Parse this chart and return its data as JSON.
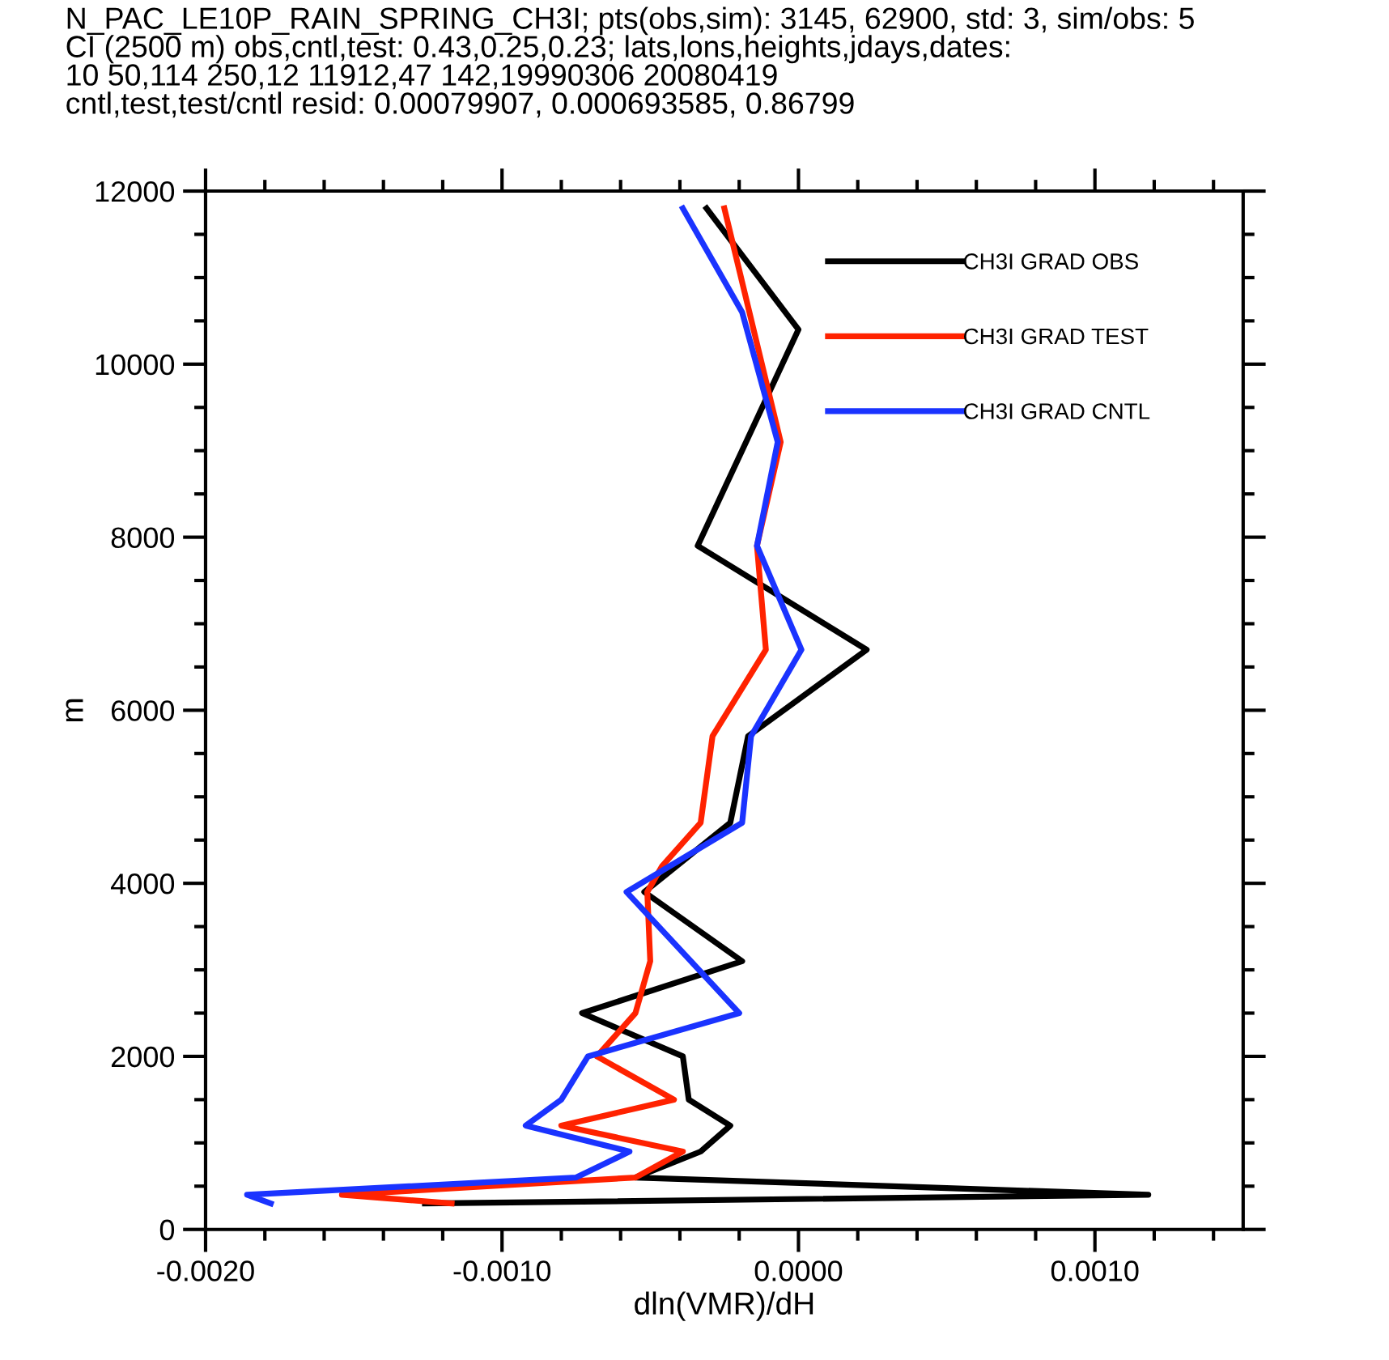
{
  "chart_data": {
    "type": "line",
    "title": "N_PAC_LE10P_RAIN_SPRING_CH3I; pts(obs,sim): 3145, 62900, std: 3, sim/obs: 5\nCI (2500 m) obs,cntl,test: 0.43,0.25,0.23; lats,lons,heights,jdays,dates:\n10 50,114 250,12 11912,47 142,19990306 20080419\ncntl,test,test/cntl resid: 0.00079907, 0.000693585, 0.86799",
    "xlabel": "dln(VMR)/dH",
    "ylabel": "m",
    "xlim": [
      -0.002,
      0.0015
    ],
    "ylim": [
      0,
      12000
    ],
    "xticks": [
      {
        "value": -0.002,
        "label": "-0.0020"
      },
      {
        "value": -0.0018,
        "label": null
      },
      {
        "value": -0.0016,
        "label": null
      },
      {
        "value": -0.0014,
        "label": null
      },
      {
        "value": -0.0012,
        "label": null
      },
      {
        "value": -0.001,
        "label": "-0.0010"
      },
      {
        "value": -0.0008,
        "label": null
      },
      {
        "value": -0.0006,
        "label": null
      },
      {
        "value": -0.0004,
        "label": null
      },
      {
        "value": -0.0002,
        "label": null
      },
      {
        "value": 0,
        "label": "0.0000"
      },
      {
        "value": 0.0002,
        "label": null
      },
      {
        "value": 0.0004,
        "label": null
      },
      {
        "value": 0.0006,
        "label": null
      },
      {
        "value": 0.0008,
        "label": null
      },
      {
        "value": 0.001,
        "label": "0.0010"
      },
      {
        "value": 0.0012,
        "label": null
      },
      {
        "value": 0.0014,
        "label": null
      }
    ],
    "yticks": [
      0,
      {
        "value": 500,
        "label": null
      },
      {
        "value": 1000,
        "label": null
      },
      {
        "value": 1500,
        "label": null
      },
      2000,
      {
        "value": 2500,
        "label": null
      },
      {
        "value": 3000,
        "label": null
      },
      {
        "value": 3500,
        "label": null
      },
      4000,
      {
        "value": 4500,
        "label": null
      },
      {
        "value": 5000,
        "label": null
      },
      {
        "value": 5500,
        "label": null
      },
      6000,
      {
        "value": 6500,
        "label": null
      },
      {
        "value": 7000,
        "label": null
      },
      {
        "value": 7500,
        "label": null
      },
      8000,
      {
        "value": 8500,
        "label": null
      },
      {
        "value": 9000,
        "label": null
      },
      {
        "value": 9500,
        "label": null
      },
      10000,
      {
        "value": 10500,
        "label": null
      },
      {
        "value": 11000,
        "label": null
      },
      {
        "value": 11500,
        "label": null
      },
      12000
    ],
    "grid": false,
    "legend": "top right",
    "marker": "none",
    "line_style": "solid",
    "series": [
      {
        "name": "CH3I GRAD OBS",
        "color": "#000000",
        "x": [
          -0.00031,
          0.0,
          -0.00034,
          0.00023,
          -0.00017,
          -0.00023,
          -0.00052,
          -0.00019,
          -0.00073,
          -0.00039,
          -0.00037,
          -0.00023,
          -0.00033,
          -0.00055,
          0.00118,
          -0.00126
        ],
        "values": [
          11800,
          10400,
          7900,
          6700,
          5700,
          4700,
          3900,
          3100,
          2500,
          2000,
          1500,
          1200,
          900,
          600,
          400,
          300
        ]
      },
      {
        "name": "CH3I GRAD TEST",
        "color": "#ff2200",
        "x": [
          -0.00025,
          -6e-05,
          -0.00014,
          -0.00011,
          -0.00029,
          -0.00033,
          -0.00046,
          -0.00051,
          -0.0005,
          -0.00055,
          -0.00068,
          -0.00042,
          -0.0008,
          -0.00039,
          -0.00055,
          -0.00154,
          -0.00117
        ],
        "values": [
          11800,
          9100,
          7900,
          6700,
          5700,
          4700,
          4200,
          3900,
          3100,
          2500,
          2000,
          1500,
          1200,
          900,
          600,
          400,
          300
        ]
      },
      {
        "name": "CH3I GRAD CNTL",
        "color": "#1a33ff",
        "x": [
          -0.00039,
          -0.00019,
          -7e-05,
          -0.00014,
          1e-05,
          -0.00016,
          -0.00019,
          -0.00058,
          -0.0002,
          -0.00071,
          -0.0008,
          -0.00092,
          -0.00057,
          -0.00075,
          -0.00186,
          -0.00178
        ],
        "values": [
          11800,
          10600,
          9100,
          7900,
          6700,
          5700,
          4700,
          3900,
          2500,
          2000,
          1500,
          1200,
          900,
          600,
          400,
          300
        ]
      }
    ]
  }
}
